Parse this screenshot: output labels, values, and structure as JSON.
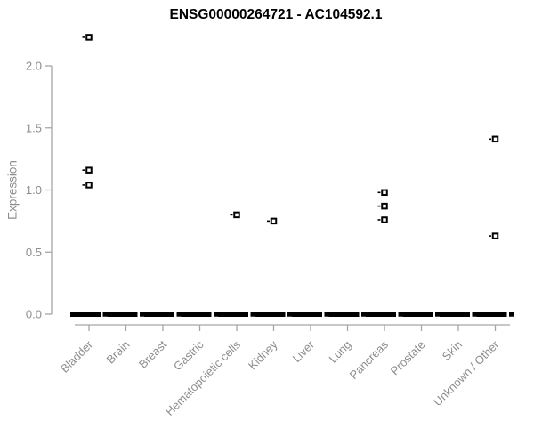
{
  "page": {
    "background": "#ffffff"
  },
  "chart_data": {
    "type": "scatter",
    "title": "ENSG00000264721 - AC104592.1",
    "ylabel": "Expression",
    "xlabel": "",
    "y_ticks": [
      0.0,
      0.5,
      1.0,
      1.5,
      2.0
    ],
    "y_axis_range": [
      0,
      2.3
    ],
    "grid": false,
    "legend": "none",
    "marker_style": "small open black square with short left whisker tick; overlapping samples at 0 form a thick black dash plus one detached square per category",
    "categories": [
      "Bladder",
      "Brain",
      "Breast",
      "Gastric",
      "Hematopoietic cells",
      "Kidney",
      "Liver",
      "Lung",
      "Pancreas",
      "Prostate",
      "Skin",
      "Unknown / Other"
    ],
    "points": [
      {
        "category": "Bladder",
        "nonzero": [
          2.23,
          1.16,
          1.04
        ],
        "zero_cluster": true
      },
      {
        "category": "Brain",
        "nonzero": [],
        "zero_cluster": true
      },
      {
        "category": "Breast",
        "nonzero": [],
        "zero_cluster": true
      },
      {
        "category": "Gastric",
        "nonzero": [],
        "zero_cluster": true
      },
      {
        "category": "Hematopoietic cells",
        "nonzero": [
          0.8
        ],
        "zero_cluster": true
      },
      {
        "category": "Kidney",
        "nonzero": [
          0.75
        ],
        "zero_cluster": true
      },
      {
        "category": "Liver",
        "nonzero": [],
        "zero_cluster": true
      },
      {
        "category": "Lung",
        "nonzero": [],
        "zero_cluster": true
      },
      {
        "category": "Pancreas",
        "nonzero": [
          0.98,
          0.87,
          0.76
        ],
        "zero_cluster": true
      },
      {
        "category": "Prostate",
        "nonzero": [],
        "zero_cluster": true
      },
      {
        "category": "Skin",
        "nonzero": [],
        "zero_cluster": true
      },
      {
        "category": "Unknown / Other",
        "nonzero": [
          1.41,
          0.63
        ],
        "zero_cluster": true
      }
    ]
  },
  "colors": {
    "marker": "#000000",
    "axis_line": "#a6a6a6",
    "axis_text": "#8d8d8d",
    "title_text": "#000000",
    "background": "#ffffff"
  }
}
